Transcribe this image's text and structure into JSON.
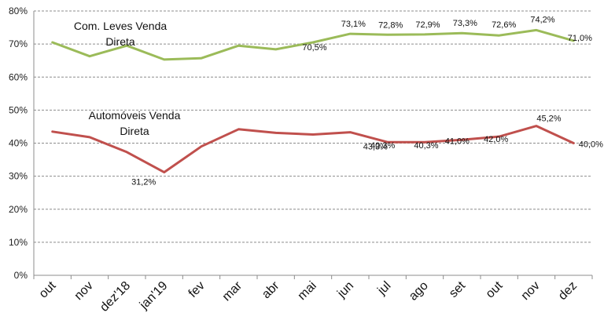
{
  "chart_data": {
    "type": "line",
    "categories": [
      "out",
      "nov",
      "dez'18",
      "jan'19",
      "fev",
      "mar",
      "abr",
      "mai",
      "jun",
      "jul",
      "ago",
      "set",
      "out",
      "nov",
      "dez"
    ],
    "ylim": [
      0,
      80
    ],
    "yticks": [
      "0%",
      "10%",
      "20%",
      "30%",
      "40%",
      "50%",
      "60%",
      "70%",
      "80%"
    ],
    "grid": true,
    "legend": "none",
    "series": [
      {
        "name_lines": [
          "Com. Leves Venda",
          "Direta"
        ],
        "color": "#9BBB59",
        "values": [
          70.5,
          66.3,
          69.5,
          65.3,
          65.7,
          69.5,
          68.4,
          70.5,
          73.1,
          72.8,
          72.9,
          73.3,
          72.6,
          74.2,
          71.0
        ],
        "labels": [
          "",
          "",
          "",
          "",
          "",
          "",
          "",
          "70,5%",
          "73,1%",
          "72,8%",
          "72,9%",
          "73,3%",
          "72,6%",
          "74,2%",
          "71,0%"
        ]
      },
      {
        "name_lines": [
          "Automóveis Venda",
          "Direta"
        ],
        "color": "#C0504D",
        "values": [
          43.5,
          41.8,
          37.3,
          31.2,
          39.0,
          44.2,
          43.1,
          42.6,
          43.3,
          40.3,
          40.3,
          41.0,
          42.0,
          45.2,
          40.0
        ],
        "labels": [
          "",
          "",
          "",
          "31,2%",
          "",
          "",
          "",
          "",
          "43,3%",
          "40,3%",
          "40,3%",
          "41,0%",
          "42,0%",
          "45,2%",
          "40,0%"
        ]
      }
    ]
  }
}
